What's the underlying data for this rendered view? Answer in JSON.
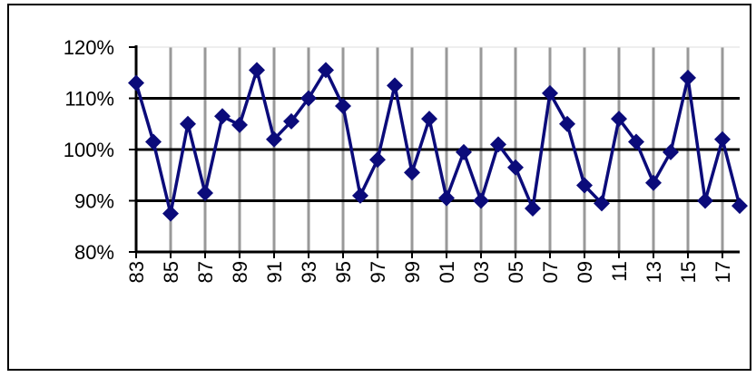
{
  "chart_data": {
    "type": "line",
    "title": "",
    "xlabel": "",
    "ylabel": "",
    "ylim": [
      80,
      120
    ],
    "y_ticks": [
      80,
      90,
      100,
      110,
      120
    ],
    "y_tick_labels": [
      "80%",
      "90%",
      "100%",
      "110%",
      "120%"
    ],
    "x": [
      "83",
      "84",
      "85",
      "86",
      "87",
      "88",
      "89",
      "90",
      "91",
      "92",
      "93",
      "94",
      "95",
      "96",
      "97",
      "98",
      "99",
      "00",
      "01",
      "02",
      "03",
      "04",
      "05",
      "06",
      "07",
      "08",
      "09",
      "10",
      "11",
      "12",
      "13",
      "14",
      "15",
      "16",
      "17",
      "18"
    ],
    "x_tick_labels": [
      "83",
      "85",
      "87",
      "89",
      "91",
      "93",
      "95",
      "97",
      "99",
      "01",
      "03",
      "05",
      "07",
      "09",
      "11",
      "13",
      "15",
      "17"
    ],
    "series": [
      {
        "color": "#0b0b7a",
        "marker": "diamond",
        "values": [
          113,
          101.5,
          87.5,
          105,
          91.5,
          106.5,
          104.8,
          115.5,
          102,
          105.5,
          110,
          115.5,
          108.5,
          91,
          98,
          112.5,
          95.5,
          106,
          90.5,
          99.5,
          90,
          101,
          96.5,
          88.5,
          111,
          105,
          93,
          89.5,
          106,
          101.5,
          93.5,
          99.5,
          114,
          90,
          102,
          89
        ]
      }
    ],
    "grid": {
      "horizontal": true,
      "vertical": true
    },
    "legend": "none"
  }
}
